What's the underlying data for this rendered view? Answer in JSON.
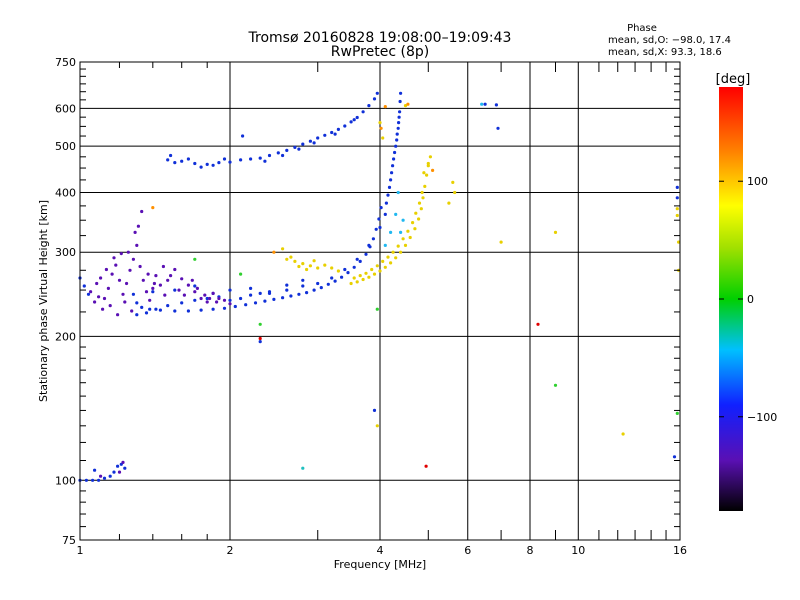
{
  "header": {
    "title_line1": "Tromsø 20160828 19:08:00–19:09:43",
    "title_line2": "RwPretec (8p)",
    "phase_title": "Phase",
    "phase_line1": "mean, sd,O: −98.0, 17.4",
    "phase_line2": "mean, sd,X:  93.3, 18.6"
  },
  "chart_data": {
    "type": "scatter",
    "title": "Tromsø 20160828 19:08:00–19:09:43",
    "subtitle": "RwPretec (8p)",
    "xlabel": "Frequency [MHz]",
    "ylabel": "Stationary phase Virtual Height [km]",
    "x_scale": "log",
    "y_scale": "log",
    "xlim": [
      1,
      16
    ],
    "ylim": [
      75,
      750
    ],
    "x_ticks": [
      1,
      2,
      4,
      6,
      8,
      10,
      16
    ],
    "x_tick_labels": [
      "1",
      "2",
      "4",
      "6",
      "8",
      "10",
      "16"
    ],
    "y_ticks": [
      75,
      100,
      200,
      300,
      400,
      500,
      600,
      750
    ],
    "y_tick_labels": [
      "75",
      "100",
      "200",
      "300",
      "400",
      "500",
      "600",
      "750"
    ],
    "grid": true,
    "colorbar": {
      "label": "[deg]",
      "min": -180,
      "max": 180,
      "ticks": [
        100,
        0,
        -100
      ],
      "tick_labels": [
        "100",
        "0",
        "−100"
      ]
    },
    "series": [
      {
        "color": "#1030d8",
        "phase": -100,
        "points": [
          [
            1.0,
            100
          ],
          [
            1.03,
            100
          ],
          [
            1.06,
            100
          ],
          [
            1.09,
            100
          ],
          [
            1.12,
            101
          ],
          [
            1.15,
            102
          ],
          [
            1.17,
            104
          ],
          [
            1.19,
            107
          ],
          [
            1.21,
            108
          ],
          [
            1.23,
            106
          ],
          [
            1.07,
            105
          ],
          [
            1.0,
            265
          ],
          [
            1.02,
            255
          ],
          [
            1.04,
            245
          ],
          [
            1.28,
            245
          ],
          [
            1.3,
            235
          ],
          [
            1.33,
            230
          ],
          [
            1.38,
            228
          ],
          [
            1.45,
            227
          ],
          [
            1.55,
            226
          ],
          [
            1.65,
            226
          ],
          [
            1.75,
            227
          ],
          [
            1.85,
            228
          ],
          [
            1.95,
            229
          ],
          [
            2.05,
            231
          ],
          [
            2.15,
            233
          ],
          [
            2.25,
            235
          ],
          [
            2.35,
            237
          ],
          [
            2.45,
            239
          ],
          [
            2.55,
            241
          ],
          [
            2.65,
            243
          ],
          [
            2.75,
            245
          ],
          [
            2.85,
            247
          ],
          [
            2.95,
            250
          ],
          [
            3.05,
            253
          ],
          [
            3.15,
            257
          ],
          [
            3.25,
            261
          ],
          [
            3.35,
            266
          ],
          [
            3.45,
            272
          ],
          [
            3.55,
            279
          ],
          [
            3.65,
            287
          ],
          [
            3.75,
            297
          ],
          [
            3.82,
            308
          ],
          [
            3.88,
            320
          ],
          [
            3.93,
            335
          ],
          [
            3.98,
            352
          ],
          [
            4.02,
            372
          ],
          [
            1.3,
            222
          ],
          [
            1.36,
            224
          ],
          [
            1.42,
            228
          ],
          [
            1.5,
            232
          ],
          [
            1.6,
            235
          ],
          [
            1.7,
            238
          ],
          [
            1.8,
            240
          ],
          [
            1.9,
            242
          ],
          [
            2.0,
            238
          ],
          [
            2.1,
            240
          ],
          [
            2.2,
            244
          ],
          [
            2.3,
            246
          ],
          [
            2.4,
            246
          ],
          [
            2.6,
            250
          ],
          [
            2.8,
            255
          ],
          [
            3.0,
            258
          ],
          [
            3.2,
            265
          ],
          [
            3.4,
            276
          ],
          [
            3.6,
            290
          ],
          [
            3.8,
            310
          ],
          [
            4.0,
            338
          ],
          [
            4.1,
            360
          ],
          [
            1.4,
            248
          ],
          [
            1.55,
            250
          ],
          [
            1.7,
            255
          ],
          [
            1.85,
            246
          ],
          [
            2.0,
            250
          ],
          [
            2.2,
            252
          ],
          [
            2.4,
            248
          ],
          [
            2.6,
            256
          ],
          [
            2.8,
            262
          ],
          [
            4.12,
            380
          ],
          [
            4.18,
            410
          ],
          [
            4.22,
            440
          ],
          [
            4.26,
            470
          ],
          [
            4.3,
            500
          ],
          [
            4.33,
            530
          ],
          [
            4.36,
            560
          ],
          [
            4.38,
            590
          ],
          [
            4.39,
            620
          ],
          [
            4.4,
            645
          ],
          [
            4.15,
            395
          ],
          [
            4.2,
            425
          ],
          [
            4.24,
            455
          ],
          [
            4.28,
            485
          ],
          [
            4.32,
            515
          ],
          [
            4.35,
            545
          ],
          [
            4.37,
            575
          ],
          [
            1.5,
            468
          ],
          [
            1.55,
            462
          ],
          [
            1.6,
            465
          ],
          [
            1.7,
            460
          ],
          [
            1.8,
            458
          ],
          [
            1.9,
            462
          ],
          [
            2.0,
            463
          ],
          [
            2.1,
            468
          ],
          [
            2.2,
            470
          ],
          [
            2.3,
            472
          ],
          [
            2.4,
            478
          ],
          [
            2.5,
            484
          ],
          [
            2.6,
            490
          ],
          [
            2.7,
            497
          ],
          [
            2.8,
            505
          ],
          [
            2.9,
            512
          ],
          [
            3.0,
            520
          ],
          [
            3.1,
            527
          ],
          [
            3.2,
            534
          ],
          [
            3.3,
            542
          ],
          [
            3.4,
            551
          ],
          [
            3.5,
            562
          ],
          [
            3.6,
            574
          ],
          [
            3.7,
            590
          ],
          [
            3.8,
            608
          ],
          [
            3.9,
            628
          ],
          [
            3.95,
            645
          ],
          [
            1.52,
            478
          ],
          [
            1.65,
            470
          ],
          [
            1.75,
            452
          ],
          [
            1.85,
            456
          ],
          [
            1.95,
            470
          ],
          [
            2.35,
            465
          ],
          [
            2.55,
            478
          ],
          [
            2.75,
            493
          ],
          [
            2.95,
            508
          ],
          [
            3.25,
            530
          ],
          [
            3.55,
            568
          ],
          [
            2.12,
            525
          ],
          [
            3.9,
            140
          ],
          [
            2.3,
            195
          ],
          [
            6.5,
            612
          ],
          [
            6.85,
            610
          ],
          [
            6.9,
            545
          ],
          [
            15.8,
            410
          ],
          [
            15.8,
            390
          ],
          [
            15.6,
            112
          ]
        ]
      },
      {
        "color": "#5a10b4",
        "phase": -130,
        "points": [
          [
            1.05,
            248
          ],
          [
            1.08,
            258
          ],
          [
            1.1,
            265
          ],
          [
            1.12,
            240
          ],
          [
            1.14,
            252
          ],
          [
            1.16,
            270
          ],
          [
            1.18,
            282
          ],
          [
            1.2,
            262
          ],
          [
            1.22,
            245
          ],
          [
            1.24,
            258
          ],
          [
            1.26,
            275
          ],
          [
            1.28,
            290
          ],
          [
            1.3,
            310
          ],
          [
            1.32,
            280
          ],
          [
            1.34,
            262
          ],
          [
            1.36,
            248
          ],
          [
            1.38,
            238
          ],
          [
            1.4,
            252
          ],
          [
            1.42,
            268
          ],
          [
            1.45,
            256
          ],
          [
            1.48,
            244
          ],
          [
            1.5,
            262
          ],
          [
            1.55,
            276
          ],
          [
            1.6,
            264
          ],
          [
            1.65,
            256
          ],
          [
            1.7,
            248
          ],
          [
            1.75,
            240
          ],
          [
            1.8,
            236
          ],
          [
            1.85,
            246
          ],
          [
            1.9,
            240
          ],
          [
            1.95,
            238
          ],
          [
            2.0,
            234
          ],
          [
            1.07,
            236
          ],
          [
            1.11,
            228
          ],
          [
            1.15,
            232
          ],
          [
            1.19,
            222
          ],
          [
            1.23,
            236
          ],
          [
            1.27,
            226
          ],
          [
            1.31,
            340
          ],
          [
            1.33,
            365
          ],
          [
            1.29,
            330
          ],
          [
            1.25,
            300
          ],
          [
            1.21,
            298
          ],
          [
            1.17,
            292
          ],
          [
            1.13,
            276
          ],
          [
            1.09,
            242
          ],
          [
            1.37,
            270
          ],
          [
            1.41,
            258
          ],
          [
            1.47,
            280
          ],
          [
            1.52,
            268
          ],
          [
            1.58,
            250
          ],
          [
            1.62,
            244
          ],
          [
            1.68,
            262
          ],
          [
            1.72,
            252
          ],
          [
            1.78,
            244
          ],
          [
            1.82,
            240
          ],
          [
            1.88,
            236
          ],
          [
            1.1,
            102
          ],
          [
            1.2,
            104
          ],
          [
            1.22,
            109
          ]
        ]
      },
      {
        "color": "#e8d000",
        "phase": 95,
        "points": [
          [
            3.5,
            258
          ],
          [
            3.6,
            260
          ],
          [
            3.7,
            263
          ],
          [
            3.8,
            266
          ],
          [
            3.9,
            270
          ],
          [
            4.0,
            274
          ],
          [
            4.1,
            279
          ],
          [
            4.2,
            285
          ],
          [
            4.3,
            292
          ],
          [
            4.4,
            300
          ],
          [
            4.5,
            310
          ],
          [
            4.6,
            322
          ],
          [
            4.7,
            336
          ],
          [
            4.78,
            352
          ],
          [
            4.84,
            370
          ],
          [
            4.88,
            390
          ],
          [
            4.92,
            412
          ],
          [
            4.96,
            435
          ],
          [
            5.0,
            460
          ],
          [
            3.55,
            265
          ],
          [
            3.65,
            268
          ],
          [
            3.75,
            271
          ],
          [
            3.85,
            276
          ],
          [
            3.95,
            281
          ],
          [
            4.05,
            287
          ],
          [
            4.15,
            293
          ],
          [
            4.25,
            300
          ],
          [
            4.35,
            309
          ],
          [
            4.45,
            320
          ],
          [
            4.55,
            332
          ],
          [
            4.65,
            346
          ],
          [
            4.72,
            362
          ],
          [
            4.8,
            380
          ],
          [
            4.86,
            400
          ],
          [
            2.6,
            290
          ],
          [
            2.7,
            287
          ],
          [
            2.8,
            284
          ],
          [
            2.9,
            281
          ],
          [
            3.0,
            278
          ],
          [
            3.1,
            282
          ],
          [
            3.2,
            278
          ],
          [
            3.3,
            274
          ],
          [
            2.55,
            305
          ],
          [
            2.65,
            293
          ],
          [
            2.75,
            280
          ],
          [
            2.85,
            276
          ],
          [
            2.95,
            288
          ],
          [
            4.9,
            440
          ],
          [
            5.0,
            455
          ],
          [
            5.05,
            475
          ],
          [
            5.6,
            420
          ],
          [
            5.65,
            400
          ],
          [
            5.5,
            380
          ],
          [
            4.05,
            520
          ],
          [
            4.0,
            560
          ],
          [
            4.5,
            608
          ],
          [
            3.95,
            130
          ],
          [
            15.8,
            370
          ],
          [
            15.8,
            358
          ],
          [
            15.9,
            315
          ],
          [
            15.9,
            275
          ],
          [
            9.0,
            330
          ],
          [
            12.3,
            125
          ],
          [
            7.0,
            315
          ]
        ]
      },
      {
        "color": "#ff9000",
        "phase": 130,
        "points": [
          [
            4.55,
            612
          ],
          [
            4.02,
            545
          ],
          [
            4.1,
            605
          ],
          [
            1.4,
            372
          ],
          [
            2.45,
            300
          ],
          [
            5.1,
            445
          ]
        ]
      },
      {
        "color": "#20b8f0",
        "phase": -40,
        "points": [
          [
            4.1,
            310
          ],
          [
            4.2,
            330
          ],
          [
            4.3,
            360
          ],
          [
            4.35,
            400
          ],
          [
            4.4,
            330
          ],
          [
            4.45,
            350
          ],
          [
            6.4,
            612
          ]
        ]
      },
      {
        "color": "#30d030",
        "phase": 20,
        "points": [
          [
            2.3,
            212
          ],
          [
            3.95,
            228
          ],
          [
            9.0,
            158
          ],
          [
            15.8,
            138
          ],
          [
            1.7,
            290
          ],
          [
            2.1,
            270
          ]
        ]
      },
      {
        "color": "#e00000",
        "phase": 170,
        "points": [
          [
            8.3,
            212
          ],
          [
            4.95,
            107
          ],
          [
            2.3,
            198
          ]
        ]
      },
      {
        "color": "#20c0c0",
        "phase": -10,
        "points": [
          [
            2.8,
            106
          ]
        ]
      }
    ]
  }
}
